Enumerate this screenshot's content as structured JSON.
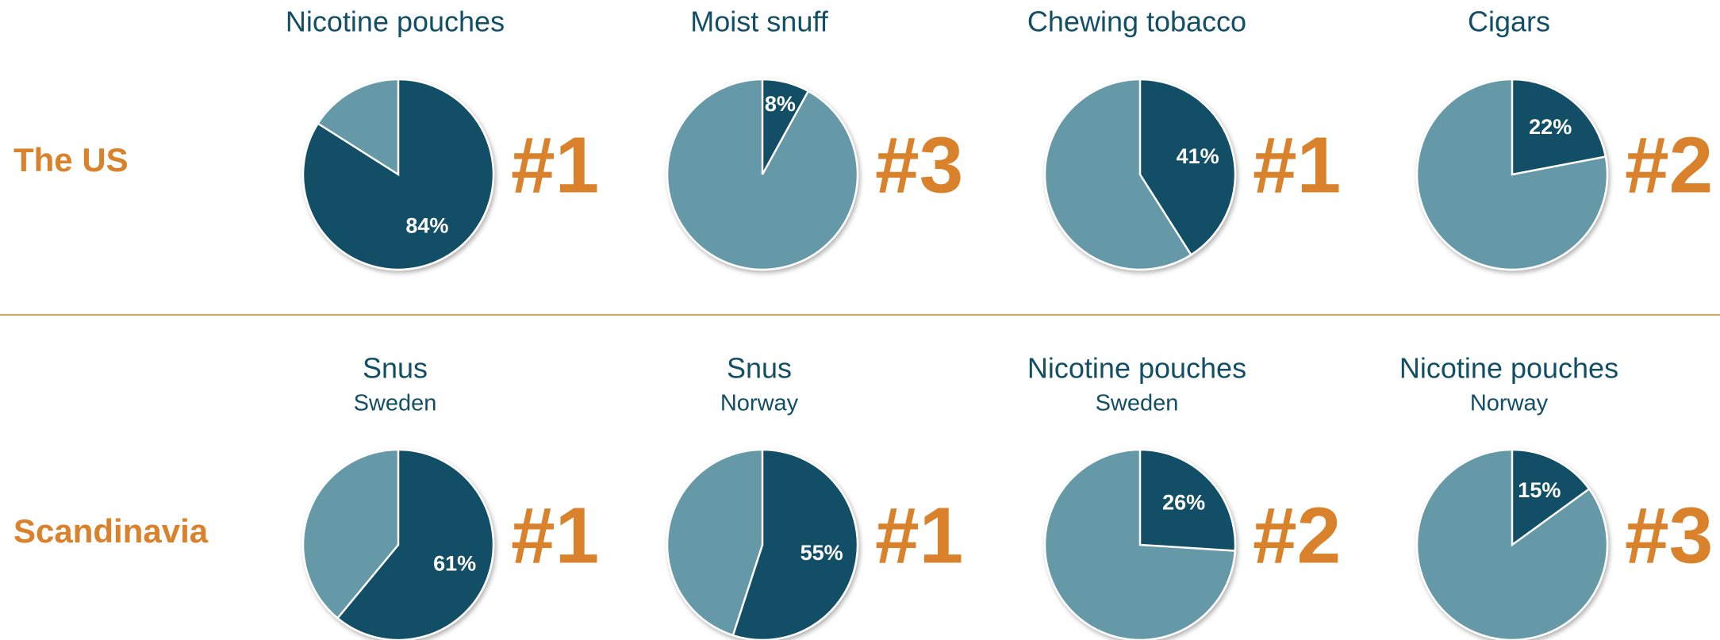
{
  "rows": [
    {
      "label": "The US",
      "charts": [
        {
          "type": "pie",
          "title": "Nicotine pouches",
          "value": 84,
          "value_label": "84%",
          "rank": "#1"
        },
        {
          "type": "pie",
          "title": "Moist snuff",
          "value": 8,
          "value_label": "8%",
          "rank": "#3"
        },
        {
          "type": "pie",
          "title": "Chewing tobacco",
          "value": 41,
          "value_label": "41%",
          "rank": "#1"
        },
        {
          "type": "pie",
          "title": "Cigars",
          "value": 22,
          "value_label": "22%",
          "rank": "#2"
        }
      ]
    },
    {
      "label": "Scandinavia",
      "charts": [
        {
          "type": "pie",
          "title": "Snus",
          "subtitle": "Sweden",
          "value": 61,
          "value_label": "61%",
          "rank": "#1"
        },
        {
          "type": "pie",
          "title": "Snus",
          "subtitle": "Norway",
          "value": 55,
          "value_label": "55%",
          "rank": "#1"
        },
        {
          "type": "pie",
          "title": "Nicotine pouches",
          "subtitle": "Sweden",
          "value": 26,
          "value_label": "26%",
          "rank": "#2"
        },
        {
          "type": "pie",
          "title": "Nicotine pouches",
          "subtitle": "Norway",
          "value": 15,
          "value_label": "15%",
          "rank": "#3"
        }
      ]
    }
  ],
  "colors": {
    "share": "#124f66",
    "rest": "#6699a8",
    "rank": "#d9822b",
    "title": "#124f66"
  }
}
